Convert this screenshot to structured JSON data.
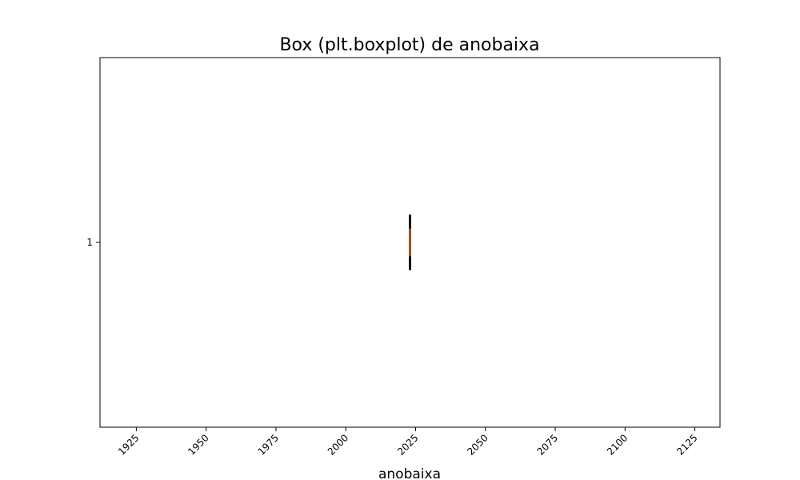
{
  "chart_data": {
    "type": "boxplot",
    "orientation": "horizontal",
    "title": "Box (plt.boxplot) de anobaixa",
    "xlabel": "anobaixa",
    "ylabel": "",
    "xlim": [
      1912,
      2134
    ],
    "x_ticks": [
      1925,
      1950,
      1975,
      2000,
      2025,
      2050,
      2075,
      2100,
      2125
    ],
    "x_tick_labels": [
      "1925",
      "1950",
      "1975",
      "2000",
      "2025",
      "2050",
      "2075",
      "2100",
      "2125"
    ],
    "x_tick_rotation_deg": -45,
    "y_ticks": [
      1
    ],
    "y_tick_labels": [
      "1"
    ],
    "grid": false,
    "legend": "none",
    "boxes": [
      {
        "position": 1,
        "min": 2023,
        "q1": 2023,
        "median": 2023,
        "q3": 2023,
        "max": 2023
      }
    ],
    "colors": {
      "box": "#000000",
      "median": "#ff7f0e",
      "axes": "#000000",
      "background": "#ffffff"
    }
  }
}
